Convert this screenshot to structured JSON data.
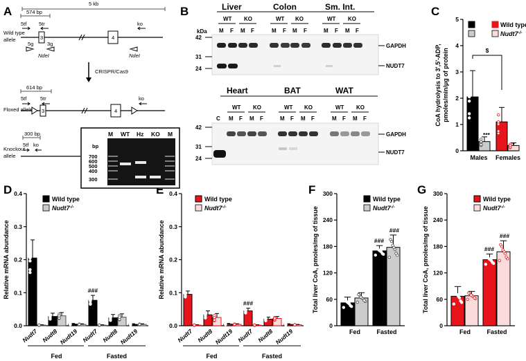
{
  "panels": {
    "A": "A",
    "B": "B",
    "C": "C",
    "D": "D",
    "E": "E",
    "F": "F",
    "G": "G"
  },
  "panelA": {
    "scale_label": "5 kb",
    "wt_allele_label": "Wild type\nallele",
    "floxed_allele_label": "Floxed allele",
    "ko_allele_label": "Knockout\nallele",
    "wt_size": "574 bp",
    "flox_size": "614 bp",
    "ko_size": "300 bp",
    "primer_5tf": "5tf",
    "primer_5tr": "5tr",
    "primer_ko": "ko",
    "primer_5g": "5g",
    "primer_3g": "3g",
    "enzyme": "NdeI",
    "exon3": "3",
    "exon4": "4",
    "method": "CRISPR/Cas9",
    "gel_lanes": [
      "M",
      "WT",
      "Hz",
      "KO",
      "M"
    ],
    "gel_unit": "bp",
    "gel_ladder": [
      "700",
      "600",
      "500",
      "400",
      "300"
    ]
  },
  "panelB": {
    "tissues_top": [
      "Liver",
      "Colon",
      "Sm. Int."
    ],
    "tissues_bottom": [
      "Heart",
      "BAT",
      "WAT"
    ],
    "genotypes": [
      "WT",
      "KO"
    ],
    "sexes": [
      "M",
      "F"
    ],
    "control_lane": "C",
    "kda": "kDa",
    "mw_top": [
      "42",
      "31",
      "24"
    ],
    "mw_bottom": [
      "42",
      "31",
      "24"
    ],
    "band1": "GAPDH",
    "band2": "NUDT7"
  },
  "legend": {
    "wt": "Wild type",
    "ko_prefix": "Nudt7",
    "ko_sup": "-/-"
  },
  "colors": {
    "wt_male": "#000000",
    "ko_male": "#cccccc",
    "wt_female": "#e8141b",
    "ko_female": "#fadcdc"
  },
  "chart_data": [
    {
      "id": "C",
      "type": "bar",
      "ylabel": "CoA hydrolysis to 3',5'-ADP,\npmoles/min/μg of protein",
      "ylim": [
        0,
        5
      ],
      "yticks": [
        "0",
        "1",
        "2",
        "3",
        "4",
        "5"
      ],
      "categories": [
        "Males",
        "Females"
      ],
      "values": [
        [
          2.05,
          0.35
        ],
        [
          1.1,
          0.2
        ]
      ],
      "errors": [
        [
          1.0,
          0.18
        ],
        [
          0.55,
          0.1
        ]
      ],
      "annotations": [
        "***",
        "*",
        "$"
      ]
    },
    {
      "id": "D",
      "type": "bar",
      "ylabel": "Relative mRNA abundance",
      "ylim": [
        0,
        0.4
      ],
      "yticks": [
        "0.0",
        "0.1",
        "0.2",
        "0.3",
        "0.4"
      ],
      "genes": [
        "Nudt7",
        "Nudt8",
        "Nudt19",
        "Nudt7",
        "Nudt8",
        "Nudt19"
      ],
      "groups": [
        "Fed",
        "Fasted"
      ],
      "wt": [
        0.205,
        0.028,
        0.005,
        0.077,
        0.024,
        0.004
      ],
      "ko": [
        0.002,
        0.03,
        0.004,
        0.002,
        0.026,
        0.004
      ],
      "wt_err": [
        0.055,
        0.01,
        0.002,
        0.015,
        0.01,
        0.002
      ],
      "ko_err": [
        0.001,
        0.01,
        0.002,
        0.001,
        0.01,
        0.002
      ],
      "annotations": [
        "###"
      ]
    },
    {
      "id": "E",
      "type": "bar",
      "ylabel": "Relative mRNA abundance",
      "ylim": [
        0,
        0.4
      ],
      "yticks": [
        "0.0",
        "0.1",
        "0.2",
        "0.3",
        "0.4"
      ],
      "genes": [
        "Nudt7",
        "Nudt8",
        "Nudt19",
        "Nudt7",
        "Nudt8",
        "Nudt19"
      ],
      "groups": [
        "Fed",
        "Fasted"
      ],
      "wt": [
        0.095,
        0.033,
        0.005,
        0.045,
        0.02,
        0.004
      ],
      "ko": [
        0.002,
        0.025,
        0.004,
        0.002,
        0.022,
        0.003
      ],
      "wt_err": [
        0.01,
        0.012,
        0.002,
        0.008,
        0.006,
        0.002
      ],
      "ko_err": [
        0.001,
        0.012,
        0.002,
        0.001,
        0.006,
        0.001
      ],
      "annotations": [
        "###"
      ]
    },
    {
      "id": "F",
      "type": "bar",
      "ylabel": "Total liver CoA, pmoles/mg of tissue",
      "ylim": [
        0,
        300
      ],
      "yticks": [
        "0",
        "60",
        "120",
        "180",
        "240",
        "300"
      ],
      "categories": [
        "Fed",
        "Fasted"
      ],
      "wt": [
        52,
        170
      ],
      "ko": [
        63,
        178
      ],
      "wt_err": [
        13,
        12
      ],
      "ko_err": [
        12,
        28
      ],
      "annotations": [
        "###",
        "###"
      ]
    },
    {
      "id": "G",
      "type": "bar",
      "ylabel": "Total liver CoA, pmoles/mg of tissue",
      "ylim": [
        0,
        300
      ],
      "yticks": [
        "0",
        "60",
        "120",
        "180",
        "240",
        "300"
      ],
      "categories": [
        "Fed",
        "Fasted"
      ],
      "wt": [
        67,
        150
      ],
      "ko": [
        68,
        168
      ],
      "wt_err": [
        22,
        13
      ],
      "ko_err": [
        10,
        25
      ],
      "annotations": [
        "###",
        "###"
      ]
    }
  ]
}
